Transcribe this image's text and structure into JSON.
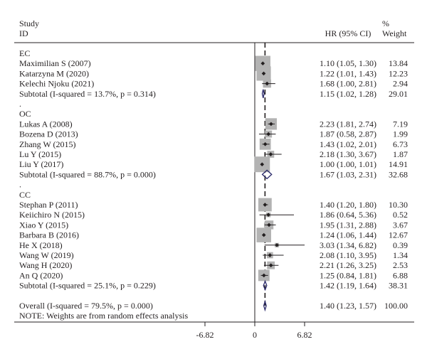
{
  "chart_data": {
    "type": "forest",
    "header": {
      "study_label_1": "Study",
      "study_label_2": "ID",
      "effect_label": "HR (95% CI)",
      "weight_label_1": "%",
      "weight_label_2": "Weight"
    },
    "rows": [
      {
        "kind": "group",
        "label": "EC"
      },
      {
        "kind": "study",
        "label": "Maximilian S (2007)",
        "hr": 1.1,
        "lo": 1.05,
        "hi": 1.3,
        "text": "1.10 (1.05, 1.30)",
        "weight": "13.84"
      },
      {
        "kind": "study",
        "label": "Katarzyna M (2020)",
        "hr": 1.22,
        "lo": 1.01,
        "hi": 1.43,
        "text": "1.22 (1.01, 1.43)",
        "weight": "12.23"
      },
      {
        "kind": "study",
        "label": "Kelechi Njoku (2021)",
        "hr": 1.68,
        "lo": 1.0,
        "hi": 2.81,
        "text": "1.68 (1.00, 2.81)",
        "weight": "2.94"
      },
      {
        "kind": "subtotal",
        "label": "Subtotal (I-squared = 13.7%, p = 0.314)",
        "hr": 1.15,
        "lo": 1.02,
        "hi": 1.28,
        "text": "1.15 (1.02, 1.28)",
        "weight": "29.01"
      },
      {
        "kind": "dot",
        "label": "."
      },
      {
        "kind": "group",
        "label": "OC"
      },
      {
        "kind": "study",
        "label": "Lukas A (2008)",
        "hr": 2.23,
        "lo": 1.81,
        "hi": 2.74,
        "text": "2.23 (1.81, 2.74)",
        "weight": "7.19"
      },
      {
        "kind": "study",
        "label": "Bozena D (2013)",
        "hr": 1.87,
        "lo": 0.58,
        "hi": 2.87,
        "text": "1.87 (0.58, 2.87)",
        "weight": "1.99"
      },
      {
        "kind": "study",
        "label": "Zhang W (2015)",
        "hr": 1.43,
        "lo": 1.02,
        "hi": 2.01,
        "text": "1.43 (1.02, 2.01)",
        "weight": "6.73"
      },
      {
        "kind": "study",
        "label": "Lu Y (2015)",
        "hr": 2.18,
        "lo": 1.3,
        "hi": 3.67,
        "text": "2.18 (1.30, 3.67)",
        "weight": "1.87"
      },
      {
        "kind": "study",
        "label": "Liu Y (2017)",
        "hr": 1.0,
        "lo": 1.0,
        "hi": 1.01,
        "text": "1.00 (1.00, 1.01)",
        "weight": "14.91"
      },
      {
        "kind": "subtotal",
        "label": "Subtotal (I-squared = 88.7%, p = 0.000)",
        "hr": 1.67,
        "lo": 1.03,
        "hi": 2.31,
        "text": "1.67 (1.03, 2.31)",
        "weight": "32.68"
      },
      {
        "kind": "dot",
        "label": "."
      },
      {
        "kind": "group",
        "label": "CC"
      },
      {
        "kind": "study",
        "label": "Stephan P (2011)",
        "hr": 1.4,
        "lo": 1.2,
        "hi": 1.8,
        "text": "1.40 (1.20, 1.80)",
        "weight": "10.30"
      },
      {
        "kind": "study",
        "label": "Keiichiro N (2015)",
        "hr": 1.86,
        "lo": 0.64,
        "hi": 5.36,
        "text": "1.86 (0.64, 5.36)",
        "weight": "0.52"
      },
      {
        "kind": "study",
        "label": "Xiao Y (2015)",
        "hr": 1.95,
        "lo": 1.31,
        "hi": 2.88,
        "text": "1.95 (1.31, 2.88)",
        "weight": "3.67"
      },
      {
        "kind": "study",
        "label": "Barbara B (2016)",
        "hr": 1.24,
        "lo": 1.06,
        "hi": 1.44,
        "text": "1.24 (1.06, 1.44)",
        "weight": "12.67"
      },
      {
        "kind": "study",
        "label": "He X (2018)",
        "hr": 3.03,
        "lo": 1.34,
        "hi": 6.82,
        "text": "3.03 (1.34, 6.82)",
        "weight": "0.39"
      },
      {
        "kind": "study",
        "label": "Wang W (2019)",
        "hr": 2.08,
        "lo": 1.1,
        "hi": 3.95,
        "text": "2.08 (1.10, 3.95)",
        "weight": "1.34"
      },
      {
        "kind": "study",
        "label": "Wang H (2020)",
        "hr": 2.21,
        "lo": 1.26,
        "hi": 3.25,
        "text": "2.21 (1.26, 3.25)",
        "weight": "2.53"
      },
      {
        "kind": "study",
        "label": "An Q (2020)",
        "hr": 1.25,
        "lo": 0.84,
        "hi": 1.81,
        "text": "1.25 (0.84, 1.81)",
        "weight": "6.88"
      },
      {
        "kind": "subtotal",
        "label": "Subtotal (I-squared = 25.1%, p = 0.229)",
        "hr": 1.42,
        "lo": 1.19,
        "hi": 1.64,
        "text": "1.42 (1.19, 1.64)",
        "weight": "38.31"
      },
      {
        "kind": "blank",
        "label": ""
      },
      {
        "kind": "overall",
        "label": "Overall (I-squared = 79.5%, p = 0.000)",
        "hr": 1.4,
        "lo": 1.23,
        "hi": 1.57,
        "text": "1.40 (1.23, 1.57)",
        "weight": "100.00"
      },
      {
        "kind": "note",
        "label": "NOTE: Weights are from random effects analysis"
      }
    ],
    "axis": {
      "xlim": [
        -6.82,
        6.82
      ],
      "ticks": [
        -6.82,
        0,
        6.82
      ],
      "tick_labels": [
        "-6.82",
        "0",
        "6.82"
      ],
      "null_line": 0,
      "pooled_line": 1.4
    },
    "colors": {
      "text": "#231f20",
      "box": "#b3b3b3",
      "diamond": "#2b2a6b",
      "line": "#231f20"
    }
  }
}
